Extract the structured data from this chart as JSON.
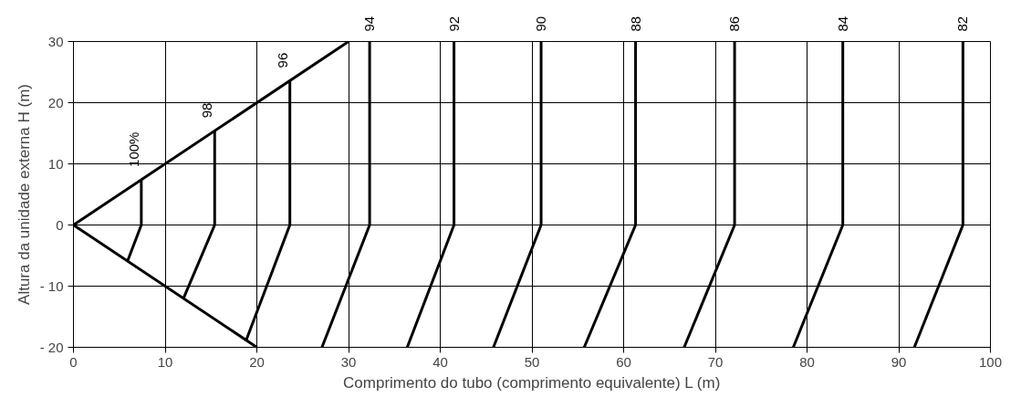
{
  "chart_data": {
    "type": "line",
    "xlabel": "Comprimento do tubo (comprimento equivalente) L (m)",
    "ylabel": "Altura da unidade externa H (m)",
    "xlim": [
      0,
      100
    ],
    "ylim": [
      -20,
      30
    ],
    "xticks": [
      0,
      10,
      20,
      30,
      40,
      50,
      60,
      70,
      80,
      90,
      100
    ],
    "yticks": [
      {
        "value": -20,
        "label": "- 20"
      },
      {
        "value": -10,
        "label": "- 10"
      },
      0,
      10,
      20,
      30
    ],
    "grid": true,
    "line_style": "solid",
    "marker": "none",
    "series": [
      {
        "color": "#000000",
        "x": [
          20,
          0,
          30
        ],
        "values": [
          -20,
          0,
          30
        ]
      },
      {
        "name": "100%",
        "color": "#000000",
        "x": [
          7.4,
          7.4,
          5.9
        ],
        "values": [
          7.4,
          0,
          -5.9
        ]
      },
      {
        "name": "98",
        "color": "#000000",
        "x": [
          15.4,
          15.4,
          12.0
        ],
        "values": [
          15.4,
          0,
          -12.0
        ]
      },
      {
        "name": "96",
        "color": "#000000",
        "x": [
          23.6,
          23.6,
          18.8
        ],
        "values": [
          23.6,
          0,
          -19.0
        ]
      },
      {
        "name": "94",
        "color": "#000000",
        "x": [
          32.3,
          32.3,
          27.1
        ],
        "values": [
          30,
          0,
          -20
        ]
      },
      {
        "name": "92",
        "color": "#000000",
        "x": [
          41.5,
          41.5,
          36.4
        ],
        "values": [
          30,
          0,
          -20
        ]
      },
      {
        "name": "90",
        "color": "#000000",
        "x": [
          51.0,
          51.0,
          45.8
        ],
        "values": [
          30,
          0,
          -20
        ]
      },
      {
        "name": "88",
        "color": "#000000",
        "x": [
          61.3,
          61.3,
          55.7
        ],
        "values": [
          30,
          0,
          -20
        ]
      },
      {
        "name": "86",
        "color": "#000000",
        "x": [
          72.1,
          72.1,
          66.6
        ],
        "values": [
          30,
          0,
          -20
        ]
      },
      {
        "name": "84",
        "color": "#000000",
        "x": [
          83.9,
          83.9,
          78.5
        ],
        "values": [
          30,
          0,
          -20
        ]
      },
      {
        "name": "82",
        "color": "#000000",
        "x": [
          97.0,
          97.0,
          91.7
        ],
        "values": [
          30,
          0,
          -20
        ]
      }
    ]
  }
}
